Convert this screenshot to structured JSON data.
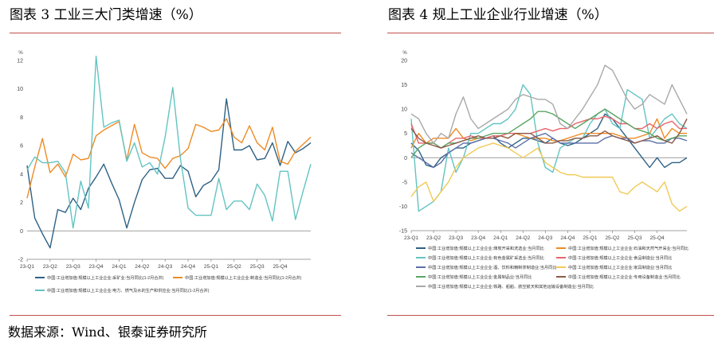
{
  "panels": [
    {
      "title": "图表 3  工业三大门类增速（%）"
    },
    {
      "title": "图表 4  规上工业企业行业增速（%）"
    }
  ],
  "source": "数据来源：Wind、银泰证券研究所",
  "chart_data": [
    {
      "type": "line",
      "unit": "%",
      "ylim": [
        -2,
        12
      ],
      "yticks": [
        -2,
        0,
        2,
        4,
        6,
        8,
        10,
        12
      ],
      "x_tick_labels": [
        "23-Q1",
        "23-Q2",
        "23-Q3",
        "23-Q4",
        "24-Q1",
        "24-Q2",
        "24-Q3",
        "24-Q4",
        "25-Q1",
        "25-Q2",
        "25-Q3",
        "25-Q4"
      ],
      "grid": false,
      "legend_position": "bottom",
      "series": [
        {
          "name": "中国:工业增加值:规模以上工业企业:采矿业:当月同比(1-2月合并)",
          "color": "#2e6185",
          "values": [
            4.6,
            0.9,
            -0.2,
            -1.2,
            1.5,
            1.3,
            2.3,
            1.5,
            3.0,
            3.8,
            4.7,
            3.4,
            2.2,
            0.2,
            2.0,
            3.6,
            4.3,
            4.4,
            3.7,
            3.7,
            4.6,
            4.2,
            2.4,
            3.2,
            3.5,
            4.3,
            9.3,
            5.7,
            5.7,
            6.0,
            5.0,
            5.1,
            6.2,
            4.6,
            6.3,
            5.5,
            5.8,
            6.2
          ]
        },
        {
          "name": "中国:工业增加值:规模以上工业企业:制造业:当月同比(1-2月合并)",
          "color": "#ee8b24",
          "values": [
            2.3,
            4.5,
            6.5,
            4.1,
            4.7,
            3.8,
            5.4,
            5.0,
            5.1,
            6.7,
            7.1,
            7.4,
            7.7,
            5.0,
            7.5,
            5.5,
            5.2,
            5.1,
            4.4,
            5.1,
            5.3,
            5.8,
            7.5,
            7.3,
            7.0,
            7.1,
            7.9,
            6.6,
            6.2,
            7.4,
            6.2,
            5.7,
            7.3,
            4.9,
            4.7,
            5.6,
            6.1,
            6.6
          ]
        },
        {
          "name": "中国:工业增加值:规模以上工业企业:电力、燃气及水的生产和供应业:当月同比(1-2月合并)",
          "color": "#62c4c2",
          "values": [
            4.3,
            5.2,
            4.8,
            4.8,
            4.9,
            4.1,
            0.2,
            3.5,
            1.6,
            12.3,
            7.3,
            7.6,
            7.8,
            4.9,
            6.2,
            4.5,
            4.8,
            4.0,
            6.6,
            10.1,
            5.1,
            1.6,
            1.1,
            1.1,
            1.1,
            3.7,
            1.5,
            2.1,
            2.1,
            1.5,
            3.3,
            2.5,
            0.7,
            4.2,
            4.2,
            0.8,
            2.8,
            4.7
          ]
        }
      ]
    },
    {
      "type": "line",
      "unit": "%",
      "ylim": [
        -15,
        20
      ],
      "yticks": [
        -15,
        -10,
        -5,
        0,
        5,
        10,
        15,
        20
      ],
      "x_tick_labels": [
        "23-Q1",
        "23-Q2",
        "23-Q3",
        "23-Q4",
        "24-Q1",
        "24-Q2",
        "24-Q3",
        "24-Q4",
        "25-Q1",
        "25-Q2",
        "25-Q3",
        "25-Q4"
      ],
      "grid": false,
      "legend_position": "bottom",
      "series": [
        {
          "name": "中国:工业增加值:规模以上工业企业:煤炭开采和洗选业:当月同比",
          "color": "#2e6185",
          "values": [
            3.0,
            1.5,
            -1.5,
            -2.0,
            0.0,
            1.0,
            2.0,
            2.0,
            3.0,
            3.5,
            4.0,
            4.5,
            3.0,
            2.0,
            3.0,
            4.0,
            4.0,
            3.5,
            3.0,
            4.0,
            3.0,
            2.5,
            3.0,
            4.0,
            5.0,
            6.0,
            9.0,
            8.0,
            6.0,
            4.0,
            2.0,
            0.0,
            -2.0,
            0.0,
            -2.0,
            -1.0,
            -1.0,
            0.0
          ]
        },
        {
          "name": "中国:工业增加值:规模以上工业企业:石油和天然气开采业:当月同比",
          "color": "#ee8b24",
          "values": [
            2.0,
            5.0,
            3.0,
            4.0,
            4.0,
            4.0,
            6.0,
            4.0,
            3.5,
            4.0,
            4.0,
            4.0,
            4.5,
            4.0,
            5.0,
            4.5,
            4.0,
            4.0,
            4.0,
            3.5,
            3.5,
            4.0,
            4.5,
            5.0,
            5.0,
            5.0,
            5.0,
            5.0,
            4.5,
            4.0,
            4.0,
            4.5,
            5.0,
            8.0,
            4.0,
            6.0,
            5.0,
            5.0
          ]
        },
        {
          "name": "中国:工业增加值:规模以上工业企业:有色金属矿采选业:当月同比",
          "color": "#62c4c2",
          "values": [
            8.0,
            -11.0,
            -10.0,
            -9.0,
            -7.0,
            2.0,
            -3.0,
            0.0,
            5.0,
            5.0,
            6.0,
            7.0,
            7.0,
            8.0,
            10.0,
            15.0,
            13.0,
            3.0,
            -2.0,
            -3.0,
            2.0,
            3.0,
            4.0,
            4.0,
            7.0,
            9.0,
            10.0,
            7.0,
            6.0,
            14.0,
            13.0,
            12.0,
            4.0,
            6.0,
            8.0,
            9.0,
            7.0,
            6.0
          ]
        },
        {
          "name": "中国:工业增加值:规模以上工业企业:食品制造业:当月同比",
          "color": "#e8636a",
          "values": [
            7.0,
            3.0,
            3.0,
            3.0,
            2.0,
            3.0,
            4.0,
            4.0,
            4.5,
            4.0,
            4.0,
            4.5,
            4.5,
            5.0,
            5.0,
            5.0,
            5.0,
            5.5,
            6.0,
            5.5,
            6.0,
            6.0,
            7.0,
            7.5,
            8.0,
            8.0,
            8.5,
            8.0,
            7.0,
            7.0,
            6.0,
            6.0,
            7.0,
            6.0,
            7.0,
            7.5,
            6.0,
            6.0
          ]
        },
        {
          "name": "中国:工业增加值:规模以上工业企业:酒、饮料和精制茶制造业:当月同比",
          "color": "#5b6fa8",
          "values": [
            1.0,
            0.0,
            -1.0,
            -2.0,
            -1.0,
            1.0,
            2.0,
            3.0,
            3.0,
            3.5,
            4.0,
            4.0,
            3.5,
            3.0,
            2.0,
            3.0,
            4.0,
            4.5,
            5.0,
            4.0,
            3.0,
            3.0,
            3.0,
            3.0,
            3.0,
            3.0,
            4.0,
            4.5,
            4.0,
            4.0,
            3.0,
            3.5,
            3.5,
            3.0,
            3.0,
            4.0,
            4.0,
            3.5
          ]
        },
        {
          "name": "中国:工业增加值:规模以上工业企业:家具制造业:当月同比",
          "color": "#f0ca55",
          "values": [
            -8.0,
            -6.0,
            -5.0,
            -9.0,
            -7.0,
            -5.0,
            -2.0,
            0.0,
            1.0,
            2.0,
            2.5,
            3.0,
            2.5,
            2.0,
            1.0,
            0.0,
            1.0,
            2.0,
            -1.0,
            -2.0,
            -3.0,
            -3.5,
            -3.5,
            -4.0,
            -4.0,
            -4.0,
            -4.0,
            -4.0,
            -7.0,
            -7.5,
            -6.0,
            -5.0,
            -6.0,
            -7.0,
            -5.0,
            -9.5,
            -11.0,
            -10.0
          ]
        },
        {
          "name": "中国:工业增加值:规模以上工业企业:金属制品业:当月同比",
          "color": "#5aa663",
          "values": [
            0.0,
            2.0,
            3.0,
            3.0,
            2.0,
            3.0,
            3.0,
            3.5,
            4.0,
            4.0,
            4.5,
            5.0,
            5.0,
            5.0,
            6.0,
            7.0,
            8.0,
            9.5,
            9.5,
            9.0,
            8.0,
            7.0,
            6.0,
            7.0,
            8.0,
            9.0,
            10.0,
            9.0,
            8.0,
            7.0,
            6.0,
            5.5,
            5.0,
            4.0,
            3.5,
            4.0,
            4.5,
            4.5
          ]
        },
        {
          "name": "中国:工业增加值:规模以上工业企业:专用设备制造业:当月同比",
          "color": "#8b5a4a",
          "values": [
            6.0,
            4.0,
            3.0,
            2.5,
            2.0,
            2.5,
            3.0,
            3.5,
            4.0,
            4.5,
            4.0,
            4.0,
            4.5,
            4.0,
            5.0,
            5.0,
            5.0,
            4.0,
            3.0,
            3.0,
            3.5,
            3.5,
            4.0,
            4.0,
            4.5,
            4.5,
            5.5,
            4.5,
            4.0,
            3.5,
            3.0,
            3.5,
            4.0,
            4.5,
            3.5,
            3.0,
            5.0,
            8.0
          ]
        },
        {
          "name": "中国:工业增加值:规模以上工业企业:铁路、船舶、航空航天和其他运输设备制造业:当月同比",
          "color": "#a9a9a9",
          "values": [
            9.0,
            8.0,
            5.0,
            3.0,
            5.0,
            4.0,
            9.0,
            12.5,
            8.0,
            6.0,
            7.0,
            8.0,
            9.0,
            10.0,
            12.0,
            13.0,
            12.5,
            12.0,
            12.0,
            11.0,
            7.0,
            6.0,
            8.0,
            10.0,
            12.5,
            15.0,
            19.0,
            18.0,
            15.0,
            12.0,
            10.0,
            11.0,
            13.0,
            12.0,
            11.0,
            15.0,
            12.0,
            9.0
          ]
        }
      ]
    }
  ]
}
